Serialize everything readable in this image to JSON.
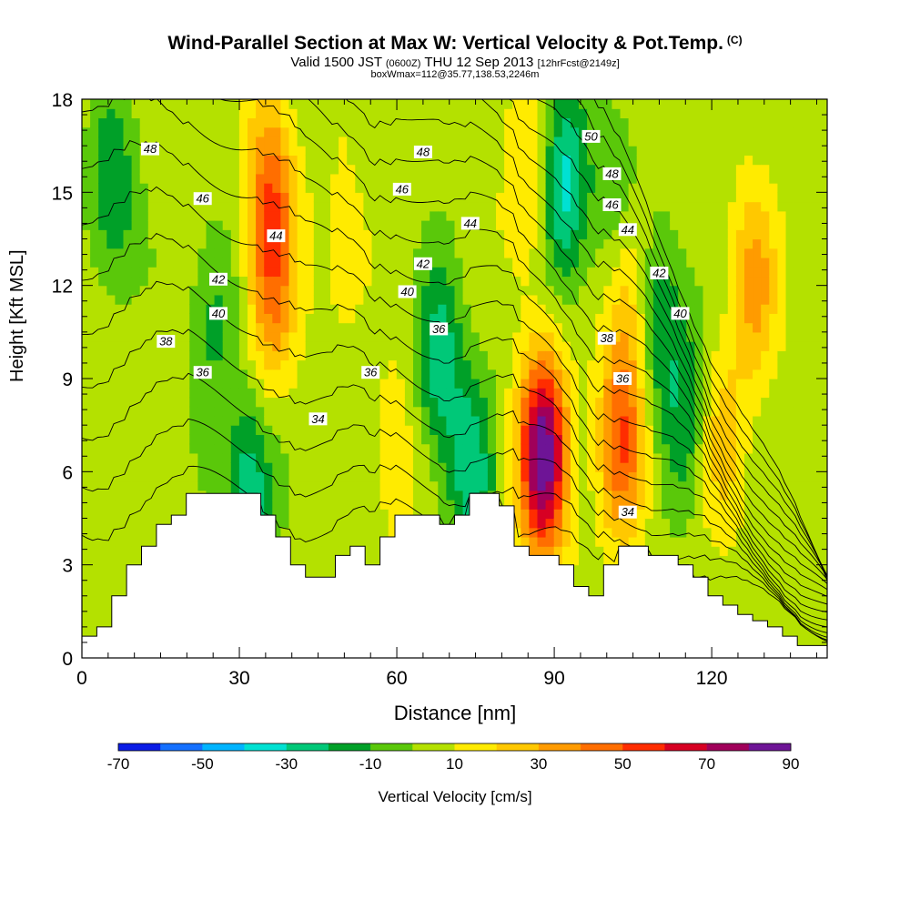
{
  "chart_data": {
    "type": "heatmap",
    "title": "Wind-Parallel Section at Max W: Vertical Velocity & Pot.Temp.",
    "title_mark": "(C)",
    "subtitle_valid": "Valid 1500 JST",
    "subtitle_utc": "(0600Z)",
    "subtitle_date": "THU 12 Sep 2013",
    "subtitle_fcst": "[12hrFcst@2149z]",
    "subtitle2": "boxWmax=112@35.77,138.53,2246m",
    "xlabel": "Distance [nm]",
    "ylabel": "Height [Kft MSL]",
    "xlim": [
      0,
      142
    ],
    "ylim": [
      0,
      18
    ],
    "x_ticks": [
      "0",
      "30",
      "60",
      "90",
      "120"
    ],
    "y_ticks": [
      "0",
      "3",
      "6",
      "9",
      "12",
      "15",
      "18"
    ],
    "colorbar_label": "Vertical Velocity [cm/s]",
    "colorbar_ticks": [
      "-70",
      "-50",
      "-30",
      "-10",
      "10",
      "30",
      "50",
      "70",
      "90"
    ],
    "colorbar_bins": [
      -70,
      -60,
      -50,
      -40,
      -30,
      -20,
      -10,
      0,
      10,
      20,
      30,
      40,
      50,
      60,
      70,
      80,
      90
    ],
    "colorbar_colors": [
      "#0a1ce6",
      "#1470ff",
      "#00b4ff",
      "#00e1d2",
      "#00c878",
      "#00a028",
      "#5ac80a",
      "#b4e100",
      "#ffeb00",
      "#ffc800",
      "#ff9b00",
      "#ff6e00",
      "#ff2d00",
      "#d70023",
      "#a0005a",
      "#6e1496"
    ],
    "terrain_heights_kft": [
      0.7,
      1.0,
      2.0,
      3.0,
      3.6,
      4.3,
      4.6,
      5.3,
      5.3,
      5.3,
      5.3,
      5.3,
      4.6,
      3.9,
      3.0,
      2.6,
      2.6,
      3.3,
      3.6,
      3.0,
      3.9,
      4.6,
      4.6,
      4.6,
      4.3,
      4.6,
      5.3,
      5.3,
      4.9,
      3.6,
      3.3,
      3.3,
      3.0,
      2.3,
      2.0,
      3.0,
      3.6,
      3.6,
      3.3,
      3.3,
      3.0,
      2.6,
      2.0,
      1.7,
      1.4,
      1.2,
      1.0,
      0.7,
      0.4,
      0.4
    ],
    "updrafts": [
      {
        "x": 88,
        "z": 6.5,
        "w": 85
      },
      {
        "x": 103,
        "z": 7.0,
        "w": 42
      },
      {
        "x": 36,
        "z": 15.0,
        "w": 38
      },
      {
        "x": 36,
        "z": 11.5,
        "w": 30
      },
      {
        "x": 104,
        "z": 12.0,
        "w": 25
      },
      {
        "x": 128,
        "z": 12.0,
        "w": 28
      },
      {
        "x": 85,
        "z": 15.0,
        "w": 18
      },
      {
        "x": 122,
        "z": 7.0,
        "w": 18
      },
      {
        "x": 50,
        "z": 13.0,
        "w": 12
      },
      {
        "x": 60,
        "z": 6.5,
        "w": 14
      }
    ],
    "downdrafts": [
      {
        "x": 6,
        "z": 15.0,
        "w": -25
      },
      {
        "x": 32,
        "z": 5.5,
        "w": -35
      },
      {
        "x": 68,
        "z": 9.5,
        "w": -30
      },
      {
        "x": 74,
        "z": 6.0,
        "w": -30
      },
      {
        "x": 92,
        "z": 15.0,
        "w": -40
      },
      {
        "x": 110,
        "z": 11.0,
        "w": -25
      },
      {
        "x": 25,
        "z": 11.0,
        "w": -18
      },
      {
        "x": 102,
        "z": 15.0,
        "w": -18
      },
      {
        "x": 115,
        "z": 8.0,
        "w": -20
      }
    ],
    "theta_levels": [
      34,
      35,
      36,
      37,
      38,
      39,
      40,
      41,
      42,
      43,
      44,
      45,
      46,
      47,
      48,
      49,
      50
    ],
    "theta_labels": [
      {
        "text": "48",
        "x": 13,
        "z": 16.4
      },
      {
        "text": "46",
        "x": 23,
        "z": 14.8
      },
      {
        "text": "44",
        "x": 37,
        "z": 13.6
      },
      {
        "text": "42",
        "x": 26,
        "z": 12.2
      },
      {
        "text": "40",
        "x": 26,
        "z": 11.1
      },
      {
        "text": "38",
        "x": 16,
        "z": 10.2
      },
      {
        "text": "36",
        "x": 23,
        "z": 9.2
      },
      {
        "text": "36",
        "x": 55,
        "z": 9.2
      },
      {
        "text": "34",
        "x": 45,
        "z": 7.7
      },
      {
        "text": "48",
        "x": 65,
        "z": 16.3
      },
      {
        "text": "46",
        "x": 61,
        "z": 15.1
      },
      {
        "text": "44",
        "x": 74,
        "z": 14.0
      },
      {
        "text": "42",
        "x": 65,
        "z": 12.7
      },
      {
        "text": "40",
        "x": 62,
        "z": 11.8
      },
      {
        "text": "36",
        "x": 68,
        "z": 10.6
      },
      {
        "text": "50",
        "x": 97,
        "z": 16.8
      },
      {
        "text": "48",
        "x": 101,
        "z": 15.6
      },
      {
        "text": "46",
        "x": 101,
        "z": 14.6
      },
      {
        "text": "44",
        "x": 104,
        "z": 13.8
      },
      {
        "text": "42",
        "x": 110,
        "z": 12.4
      },
      {
        "text": "40",
        "x": 114,
        "z": 11.1
      },
      {
        "text": "38",
        "x": 100,
        "z": 10.3
      },
      {
        "text": "36",
        "x": 103,
        "z": 9.0
      },
      {
        "text": "34",
        "x": 104,
        "z": 4.7
      }
    ]
  }
}
